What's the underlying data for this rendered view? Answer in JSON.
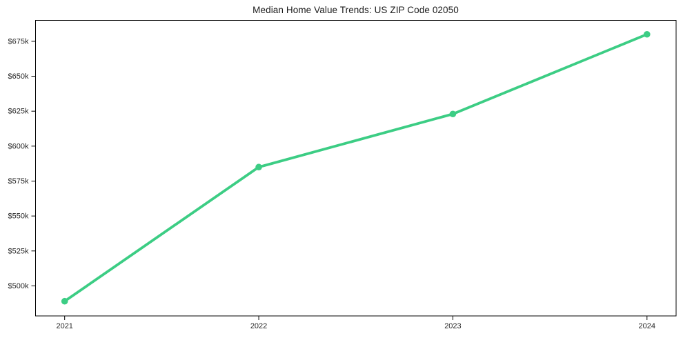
{
  "chart_data": {
    "type": "line",
    "title": "Median Home Value Trends: US ZIP Code 02050",
    "categories": [
      "2021",
      "2022",
      "2023",
      "2024"
    ],
    "x": [
      2021,
      2022,
      2023,
      2024
    ],
    "series": [
      {
        "name": "Median Home Value",
        "values": [
          489000,
          585000,
          623000,
          680000
        ]
      }
    ],
    "yticks": [
      {
        "value": 500000,
        "label": "$500k"
      },
      {
        "value": 525000,
        "label": "$525k"
      },
      {
        "value": 550000,
        "label": "$550k"
      },
      {
        "value": 575000,
        "label": "$575k"
      },
      {
        "value": 600000,
        "label": "$600k"
      },
      {
        "value": 625000,
        "label": "$625k"
      },
      {
        "value": 650000,
        "label": "$650k"
      },
      {
        "value": 675000,
        "label": "$675k"
      }
    ],
    "xlim": [
      2020.85,
      2024.15
    ],
    "ylim": [
      478500,
      690000
    ],
    "xlabel": "",
    "ylabel": "",
    "grid": false,
    "legend": false,
    "line_color": "#3ccd84",
    "marker_color": "#3ccd84",
    "marker": "circle",
    "background_color": "#ffffff",
    "text_color": "#262626",
    "spine_color": "#000000"
  }
}
